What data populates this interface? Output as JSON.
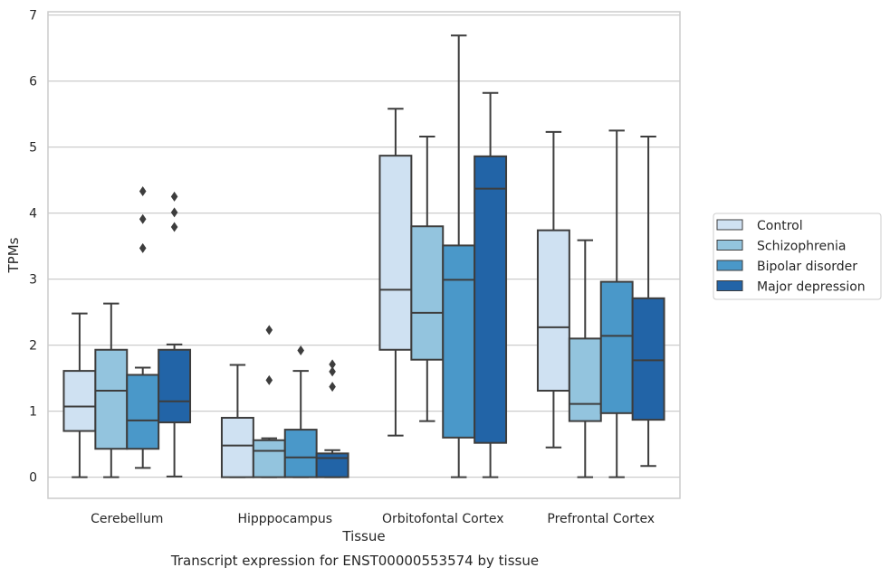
{
  "chart_data": {
    "type": "box",
    "title": "",
    "caption": "Transcript expression for ENST00000553574 by tissue",
    "xlabel": "Tissue",
    "ylabel": "TPMs",
    "ylim": [
      -0.32,
      7.05
    ],
    "yticks": [
      0,
      1,
      2,
      3,
      4,
      5,
      6,
      7
    ],
    "grid": "horizontal",
    "legend_position": "right",
    "categories": [
      "Cerebellum",
      "Hipppocampus",
      "Orbitofontal Cortex",
      "Prefrontal Cortex"
    ],
    "series": [
      {
        "name": "Control",
        "color": "#cfe1f2",
        "boxes": [
          {
            "whisker_low": 0.0,
            "q1": 0.7,
            "median": 1.07,
            "q3": 1.61,
            "whisker_high": 2.48,
            "outliers": []
          },
          {
            "whisker_low": 0.0,
            "q1": 0.0,
            "median": 0.48,
            "q3": 0.9,
            "whisker_high": 1.7,
            "outliers": []
          },
          {
            "whisker_low": 0.63,
            "q1": 1.93,
            "median": 2.84,
            "q3": 4.87,
            "whisker_high": 5.58,
            "outliers": []
          },
          {
            "whisker_low": 0.45,
            "q1": 1.31,
            "median": 2.27,
            "q3": 3.74,
            "whisker_high": 5.23,
            "outliers": []
          }
        ]
      },
      {
        "name": "Schizophrenia",
        "color": "#93c4de",
        "boxes": [
          {
            "whisker_low": 0.0,
            "q1": 0.43,
            "median": 1.31,
            "q3": 1.93,
            "whisker_high": 2.63,
            "outliers": []
          },
          {
            "whisker_low": 0.0,
            "q1": 0.0,
            "median": 0.4,
            "q3": 0.56,
            "whisker_high": 0.59,
            "outliers": [
              1.47,
              2.23
            ]
          },
          {
            "whisker_low": 0.85,
            "q1": 1.78,
            "median": 2.49,
            "q3": 3.8,
            "whisker_high": 5.16,
            "outliers": []
          },
          {
            "whisker_low": 0.0,
            "q1": 0.85,
            "median": 1.11,
            "q3": 2.1,
            "whisker_high": 3.59,
            "outliers": []
          }
        ]
      },
      {
        "name": "Bipolar disorder",
        "color": "#4a98c9",
        "boxes": [
          {
            "whisker_low": 0.14,
            "q1": 0.43,
            "median": 0.86,
            "q3": 1.55,
            "whisker_high": 1.66,
            "outliers": [
              3.47,
              3.91,
              4.33
            ]
          },
          {
            "whisker_low": 0.0,
            "q1": 0.0,
            "median": 0.3,
            "q3": 0.72,
            "whisker_high": 1.61,
            "outliers": [
              1.92
            ]
          },
          {
            "whisker_low": 0.0,
            "q1": 0.6,
            "median": 2.99,
            "q3": 3.51,
            "whisker_high": 6.69,
            "outliers": []
          },
          {
            "whisker_low": 0.0,
            "q1": 0.97,
            "median": 2.14,
            "q3": 2.96,
            "whisker_high": 5.25,
            "outliers": []
          }
        ]
      },
      {
        "name": "Major depression",
        "color": "#2264a7",
        "boxes": [
          {
            "whisker_low": 0.01,
            "q1": 0.83,
            "median": 1.15,
            "q3": 1.93,
            "whisker_high": 2.01,
            "outliers": [
              3.79,
              4.01,
              4.25
            ]
          },
          {
            "whisker_low": 0.0,
            "q1": 0.0,
            "median": 0.29,
            "q3": 0.36,
            "whisker_high": 0.41,
            "outliers": [
              1.37,
              1.6,
              1.71
            ]
          },
          {
            "whisker_low": 0.0,
            "q1": 0.52,
            "median": 4.37,
            "q3": 4.86,
            "whisker_high": 5.82,
            "outliers": []
          },
          {
            "whisker_low": 0.17,
            "q1": 0.87,
            "median": 1.77,
            "q3": 2.71,
            "whisker_high": 5.16,
            "outliers": []
          }
        ]
      }
    ]
  }
}
